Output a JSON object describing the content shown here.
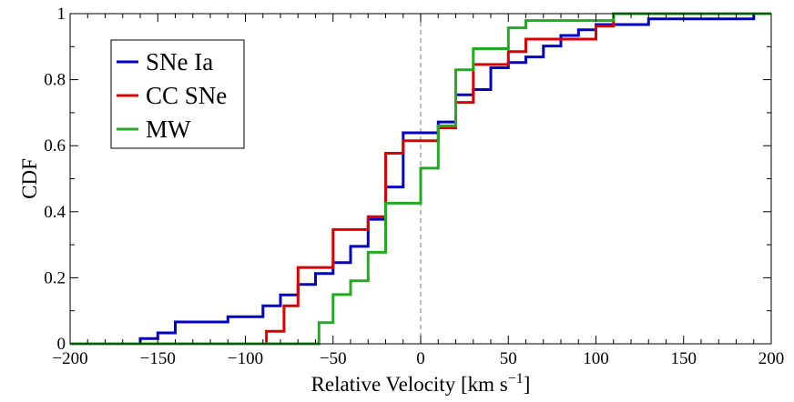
{
  "chart_data": {
    "type": "line",
    "step": true,
    "title": "",
    "xlabel": "Relative Velocity [km s",
    "xlabel_sup": "−1",
    "xlabel_suffix": "]",
    "ylabel": "CDF",
    "xlim": [
      -200,
      200
    ],
    "ylim": [
      0,
      1
    ],
    "x_ticks": [
      -200,
      -150,
      -100,
      -50,
      0,
      50,
      100,
      150,
      200
    ],
    "x_tick_labels": [
      "−200",
      "−150",
      "−100",
      "−50",
      "0",
      "50",
      "100",
      "150",
      "200"
    ],
    "y_ticks": [
      0,
      0.2,
      0.4,
      0.6,
      0.8,
      1
    ],
    "y_tick_labels": [
      "0",
      "0.2",
      "0.4",
      "0.6",
      "0.8",
      "1"
    ],
    "grid": false,
    "reference_line": {
      "x": 0,
      "style": "dashed",
      "color": "#999999"
    },
    "legend": {
      "position": "top-left",
      "entries": [
        {
          "label": "SNe Ia",
          "color": "#0000cc"
        },
        {
          "label": "CC SNe",
          "color": "#dd0000"
        },
        {
          "label": "MW",
          "color": "#22aa22"
        }
      ]
    },
    "series": [
      {
        "name": "SNe Ia",
        "color": "#0000cc",
        "x": [
          -200,
          -160,
          -150,
          -140,
          -120,
          -110,
          -90,
          -80,
          -70,
          -60,
          -50,
          -40,
          -30,
          -20,
          -10,
          10,
          20,
          30,
          40,
          50,
          60,
          70,
          80,
          90,
          100,
          130,
          190
        ],
        "y": [
          0,
          0.016,
          0.033,
          0.066,
          0.066,
          0.082,
          0.115,
          0.148,
          0.18,
          0.213,
          0.246,
          0.295,
          0.377,
          0.475,
          0.639,
          0.672,
          0.754,
          0.77,
          0.836,
          0.852,
          0.869,
          0.902,
          0.934,
          0.951,
          0.967,
          0.984,
          1.0
        ]
      },
      {
        "name": "CC SNe",
        "color": "#dd0000",
        "x": [
          -200,
          -88,
          -78,
          -70,
          -60,
          -50,
          -40,
          -30,
          -20,
          -10,
          10,
          20,
          30,
          40,
          50,
          60,
          100,
          110
        ],
        "y": [
          0,
          0.038,
          0.115,
          0.231,
          0.231,
          0.346,
          0.346,
          0.385,
          0.577,
          0.615,
          0.654,
          0.731,
          0.846,
          0.846,
          0.885,
          0.923,
          0.962,
          1.0
        ]
      },
      {
        "name": "MW",
        "color": "#22aa22",
        "x": [
          -200,
          -58,
          -50,
          -40,
          -30,
          -20,
          0,
          10,
          20,
          30,
          50,
          60,
          100,
          110,
          200
        ],
        "y": [
          0,
          0.064,
          0.149,
          0.191,
          0.277,
          0.426,
          0.532,
          0.66,
          0.83,
          0.894,
          0.957,
          0.979,
          0.979,
          1.0,
          1.0
        ]
      }
    ]
  }
}
